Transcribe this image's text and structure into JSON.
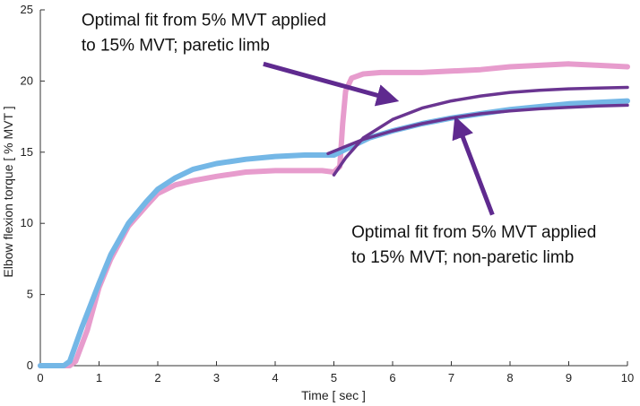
{
  "chart_data": {
    "type": "line",
    "title": "",
    "xlabel": "Time [ sec ]",
    "ylabel": "Elbow flexion torque [ % MVT ]",
    "xlim": [
      0,
      10
    ],
    "ylim": [
      0,
      25
    ],
    "xticks": [
      0,
      1,
      2,
      3,
      4,
      5,
      6,
      7,
      8,
      9,
      10
    ],
    "yticks": [
      0,
      5,
      10,
      15,
      20,
      25
    ],
    "grid": false,
    "legend": "none",
    "series": [
      {
        "color": "#e79ccd",
        "width": 6,
        "x": [
          0,
          0.5,
          0.6,
          0.8,
          1.0,
          1.2,
          1.5,
          1.8,
          2.0,
          2.3,
          2.6,
          3.0,
          3.5,
          4.0,
          4.5,
          4.8,
          5.0,
          5.1,
          5.15,
          5.2,
          5.3,
          5.5,
          5.8,
          6.0,
          6.5,
          7.0,
          7.5,
          8.0,
          8.5,
          9.0,
          9.5,
          10.0
        ],
        "y": [
          0,
          0,
          0.3,
          2.5,
          5.5,
          7.5,
          9.8,
          11.2,
          12.1,
          12.7,
          13.0,
          13.3,
          13.6,
          13.7,
          13.7,
          13.7,
          13.6,
          14.0,
          17.0,
          19.3,
          20.2,
          20.5,
          20.6,
          20.6,
          20.6,
          20.7,
          20.8,
          21.0,
          21.1,
          21.2,
          21.1,
          21.0
        ]
      },
      {
        "color": "#74b7e6",
        "width": 6,
        "x": [
          0,
          0.4,
          0.5,
          0.7,
          1.0,
          1.2,
          1.5,
          1.8,
          2.0,
          2.3,
          2.6,
          3.0,
          3.5,
          4.0,
          4.5,
          5.0,
          5.3,
          5.6,
          6.0,
          6.5,
          7.0,
          7.5,
          8.0,
          8.5,
          9.0,
          9.5,
          10.0
        ],
        "y": [
          0,
          0,
          0.3,
          2.6,
          5.8,
          7.8,
          10.0,
          11.5,
          12.4,
          13.2,
          13.8,
          14.2,
          14.5,
          14.7,
          14.8,
          14.8,
          15.4,
          16.0,
          16.5,
          17.0,
          17.4,
          17.7,
          18.0,
          18.2,
          18.4,
          18.5,
          18.6
        ]
      },
      {
        "color": "#6a3591",
        "width": 3.5,
        "x": [
          5.0,
          5.2,
          5.5,
          6.0,
          6.5,
          7.0,
          7.5,
          8.0,
          8.5,
          9.0,
          9.5,
          10.0
        ],
        "y": [
          13.4,
          14.6,
          16.0,
          17.3,
          18.1,
          18.6,
          18.95,
          19.2,
          19.35,
          19.45,
          19.5,
          19.55
        ]
      },
      {
        "color": "#6a3591",
        "width": 3.5,
        "x": [
          4.9,
          5.2,
          5.5,
          6.0,
          6.5,
          7.0,
          7.5,
          8.0,
          8.5,
          9.0,
          9.5,
          10.0
        ],
        "y": [
          14.9,
          15.4,
          15.9,
          16.5,
          17.0,
          17.4,
          17.7,
          17.9,
          18.05,
          18.15,
          18.25,
          18.3
        ]
      }
    ],
    "annotations": [
      {
        "lines": [
          "Optimal fit from 5% MVT applied",
          "to 15% MVT; paretic limb"
        ],
        "text_anchor": [
          0.7,
          23.9
        ],
        "arrow_from": [
          3.8,
          21.2
        ],
        "arrow_to": [
          6.0,
          18.7
        ]
      },
      {
        "lines": [
          "Optimal fit from 5% MVT applied",
          "to 15% MVT; non-paretic limb"
        ],
        "text_anchor": [
          5.3,
          9.0
        ],
        "arrow_from": [
          7.7,
          10.6
        ],
        "arrow_to": [
          7.1,
          17.1
        ]
      }
    ],
    "arrow_color": "#5f2a8f"
  }
}
